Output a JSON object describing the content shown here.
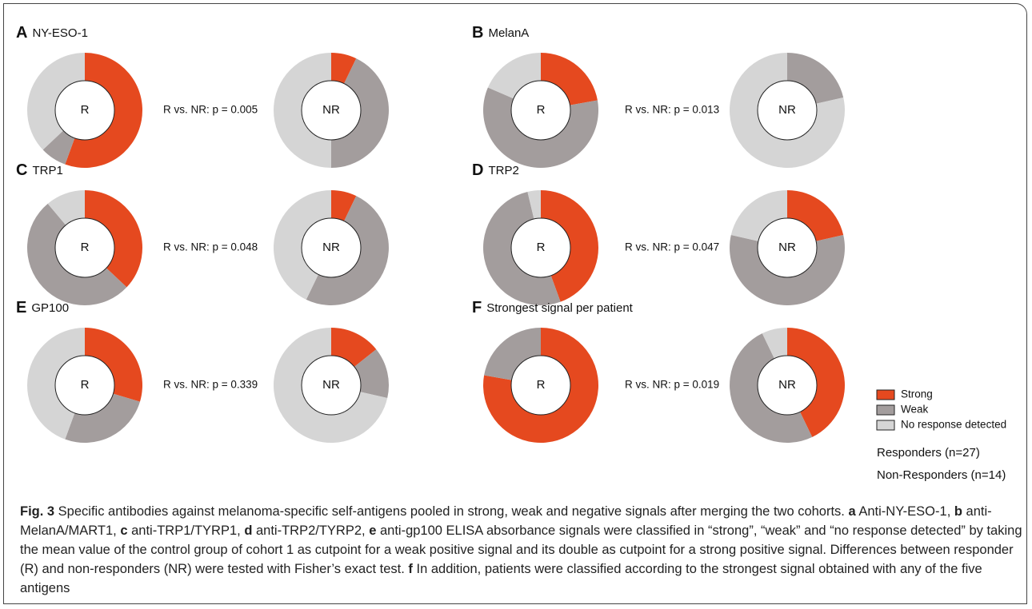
{
  "legend": {
    "categories": [
      "Strong",
      "Weak",
      "No response detected"
    ],
    "colors": [
      "#e5491f",
      "#a39d9d",
      "#d5d5d5"
    ],
    "notes": [
      "Responders (n=27)",
      "Non-Responders (n=14)"
    ]
  },
  "chart_data": [
    {
      "type": "donut",
      "letter": "A",
      "title": "NY-ESO-1",
      "annotation": "R vs. NR: p = 0.005",
      "series": [
        {
          "name": "R",
          "values": [
            15,
            2,
            10
          ]
        },
        {
          "name": "NR",
          "values": [
            1,
            6,
            7
          ]
        }
      ]
    },
    {
      "type": "donut",
      "letter": "B",
      "title": "MelanA",
      "annotation": "R vs. NR: p = 0.013",
      "series": [
        {
          "name": "R",
          "values": [
            6,
            16,
            5
          ]
        },
        {
          "name": "NR",
          "values": [
            0,
            3,
            11
          ]
        }
      ]
    },
    {
      "type": "donut",
      "letter": "C",
      "title": "TRP1",
      "annotation": "R vs. NR: p = 0.048",
      "series": [
        {
          "name": "R",
          "values": [
            10,
            14,
            3
          ]
        },
        {
          "name": "NR",
          "values": [
            1,
            7,
            6
          ]
        }
      ]
    },
    {
      "type": "donut",
      "letter": "D",
      "title": "TRP2",
      "annotation": "R vs. NR: p = 0.047",
      "series": [
        {
          "name": "R",
          "values": [
            12,
            14,
            1
          ]
        },
        {
          "name": "NR",
          "values": [
            3,
            8,
            3
          ]
        }
      ]
    },
    {
      "type": "donut",
      "letter": "E",
      "title": "GP100",
      "annotation": "R vs. NR: p = 0.339",
      "series": [
        {
          "name": "R",
          "values": [
            8,
            7,
            12
          ]
        },
        {
          "name": "NR",
          "values": [
            2,
            2,
            10
          ]
        }
      ]
    },
    {
      "type": "donut",
      "letter": "F",
      "title": "Strongest signal per patient",
      "annotation": "R vs. NR: p = 0.019",
      "series": [
        {
          "name": "R",
          "values": [
            21,
            6,
            0
          ]
        },
        {
          "name": "NR",
          "values": [
            6,
            7,
            1
          ]
        }
      ]
    }
  ],
  "caption": [
    {
      "text": "Fig. 3",
      "bold": true
    },
    {
      "text": " Specific antibodies against melanoma-specific self-antigens pooled in strong, weak and negative signals after merging the two cohorts. ",
      "bold": false
    },
    {
      "text": "a",
      "bold": true
    },
    {
      "text": " Anti-NY-ESO-1, ",
      "bold": false
    },
    {
      "text": "b",
      "bold": true
    },
    {
      "text": " anti-MelanA/MART1, ",
      "bold": false
    },
    {
      "text": "c",
      "bold": true
    },
    {
      "text": " anti-TRP1/TYRP1, ",
      "bold": false
    },
    {
      "text": "d",
      "bold": true
    },
    {
      "text": " anti-TRP2/TYRP2, ",
      "bold": false
    },
    {
      "text": "e",
      "bold": true
    },
    {
      "text": " anti-gp100 ELISA absorbance signals were classified in “strong”, “weak” and “no response detected” by taking the mean value of the control group of cohort 1 as cutpoint for a weak positive signal and its double as cutpoint for a strong positive signal. Differences between responder (R) and non-responders (NR) were tested with Fisher’s exact test. ",
      "bold": false
    },
    {
      "text": "f",
      "bold": true
    },
    {
      "text": " In addition, patients were classified according to the strongest signal obtained with any of the five antigens",
      "bold": false
    }
  ]
}
